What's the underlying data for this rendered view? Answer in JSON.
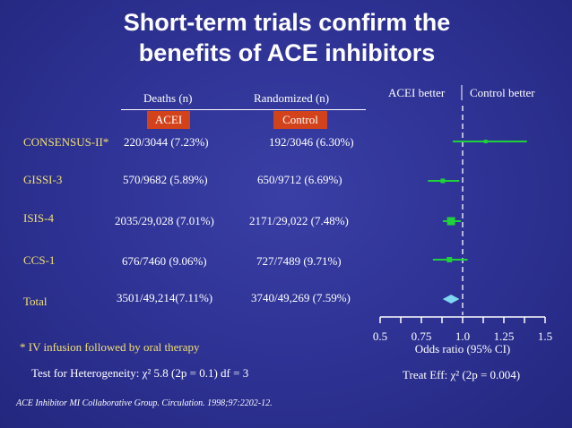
{
  "slide": {
    "title_line1": "Short-term trials confirm the",
    "title_line2": "benefits of ACE inhibitors"
  },
  "table": {
    "deaths_header": "Deaths (n)",
    "randomized_header": "Randomized (n)",
    "acei_tag": "ACEI",
    "control_tag": "Control",
    "rows": [
      {
        "trial": "CONSENSUS-II*",
        "acei": "220/3044 (7.23%)",
        "control": "192/3046 (6.30%)"
      },
      {
        "trial": "GISSI-3",
        "acei": "570/9682 (5.89%)",
        "control": "650/9712 (6.69%)"
      },
      {
        "trial": "ISIS-4",
        "acei": "2035/29,028 (7.01%)",
        "control": "2171/29,022 (7.48%)"
      },
      {
        "trial": "CCS-1",
        "acei": "676/7460 (9.06%)",
        "control": "727/7489 (9.71%)"
      },
      {
        "trial": "Total",
        "acei": "3501/49,214(7.11%)",
        "control": "3740/49,269 (7.59%)"
      }
    ]
  },
  "plot": {
    "acei_better": "ACEI better",
    "control_better": "Control better",
    "ticks": [
      "0.5",
      "0.75",
      "1.0",
      "1.25",
      "1.5"
    ],
    "xlabel": "Odds ratio (95% CI)",
    "estimate_color": "#1fd13a",
    "total_color": "#7fd8f0"
  },
  "chart_data": {
    "type": "scatter",
    "xlabel": "Odds ratio (95% CI)",
    "xlim": [
      0.5,
      1.5
    ],
    "reference_line": 1.0,
    "categories": [
      "CONSENSUS-II*",
      "GISSI-3",
      "ISIS-4",
      "CCS-1",
      "Total"
    ],
    "or": [
      1.14,
      0.88,
      0.93,
      0.92,
      0.93
    ],
    "ci_low": [
      0.94,
      0.79,
      0.88,
      0.82,
      0.89
    ],
    "ci_high": [
      1.39,
      0.98,
      0.99,
      1.03,
      0.97
    ]
  },
  "footer": {
    "footnote": "* IV infusion followed by oral therapy",
    "heterogeneity": "Test for Heterogeneity: χ² 5.8 (2p = 0.1) df = 3",
    "treat_eff": "Treat Eff: χ² (2p = 0.004)",
    "citation": "ACE Inhibitor MI Collaborative Group. Circulation. 1998;97:2202-12."
  }
}
